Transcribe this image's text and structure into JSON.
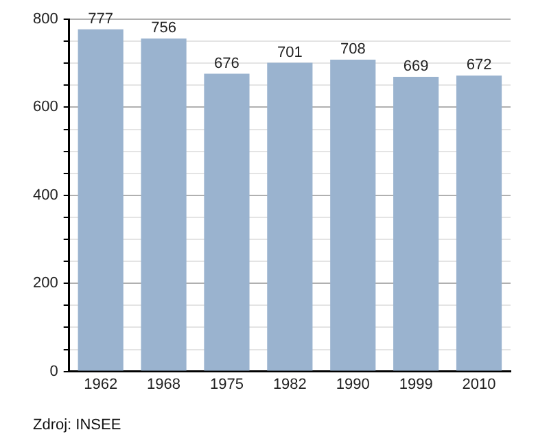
{
  "chart_data": {
    "type": "bar",
    "categories": [
      "1962",
      "1968",
      "1975",
      "1982",
      "1990",
      "1999",
      "2010"
    ],
    "values": [
      777,
      756,
      676,
      701,
      708,
      669,
      672
    ],
    "color": "#9ab3cf",
    "ylim": [
      0,
      800
    ],
    "yticks": [
      0,
      {
        "value": 50,
        "label": null
      },
      {
        "value": 100,
        "label": null
      },
      {
        "value": 150,
        "label": null
      },
      200,
      {
        "value": 250,
        "label": null
      },
      {
        "value": 300,
        "label": null
      },
      {
        "value": 350,
        "label": null
      },
      400,
      {
        "value": 450,
        "label": null
      },
      {
        "value": 500,
        "label": null
      },
      {
        "value": 550,
        "label": null
      },
      600,
      {
        "value": 650,
        "label": null
      },
      {
        "value": 700,
        "label": null
      },
      {
        "value": 750,
        "label": null
      },
      800
    ],
    "grid": "y",
    "data_labels": true,
    "annotations": [
      "Zdroj: INSEE"
    ]
  }
}
